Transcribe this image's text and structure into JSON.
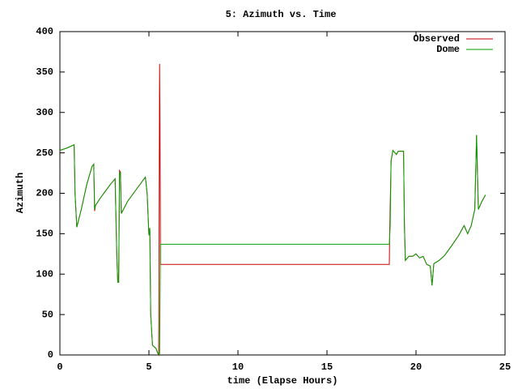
{
  "chart_data": {
    "type": "line",
    "title": "5: Azimuth vs. Time",
    "x_label": "time (Elapse Hours)",
    "y_label": "Azimuth",
    "xlim": [
      0,
      25
    ],
    "xticks": [
      0,
      5,
      10,
      15,
      20,
      25
    ],
    "ylim": [
      0,
      400
    ],
    "yticks": [
      0,
      50,
      100,
      150,
      200,
      250,
      300,
      350,
      400
    ],
    "grid": false,
    "legend": "top-right",
    "series": [
      {
        "name": "Observed",
        "color": "#cc0000",
        "x": [
          0,
          0.4,
          0.8,
          0.85,
          0.95,
          1.2,
          1.5,
          1.8,
          1.9,
          1.95,
          2.0,
          2.3,
          2.8,
          3.1,
          3.2,
          3.25,
          3.3,
          3.35,
          3.4,
          3.45,
          3.8,
          4.3,
          4.8,
          4.9,
          5.0,
          5.05,
          5.1,
          5.2,
          5.4,
          5.5,
          5.55,
          5.6,
          5.62,
          5.65,
          18.5,
          18.52,
          18.55,
          18.6,
          18.7,
          18.9,
          19.0,
          19.3,
          19.35,
          19.4,
          19.6,
          19.8,
          20.0,
          20.2,
          20.4,
          20.6,
          20.8,
          20.9,
          21.0,
          21.3,
          21.6,
          22.0,
          22.4,
          22.7,
          22.9,
          23.1,
          23.3,
          23.4,
          23.5,
          23.7,
          23.9
        ],
        "values": [
          253,
          256,
          260,
          200,
          158,
          180,
          210,
          233,
          236,
          178,
          185,
          195,
          210,
          218,
          120,
          90,
          90,
          228,
          226,
          175,
          190,
          205,
          220,
          200,
          148,
          157,
          50,
          12,
          8,
          2,
          0,
          360,
          298,
          112,
          112,
          150,
          185,
          240,
          253,
          248,
          252,
          252,
          160,
          117,
          122,
          122,
          125,
          120,
          122,
          112,
          110,
          86,
          113,
          117,
          123,
          135,
          148,
          160,
          150,
          160,
          180,
          272,
          180,
          190,
          198
        ]
      },
      {
        "name": "Dome",
        "color": "#00a000",
        "x": [
          0,
          0.4,
          0.8,
          0.85,
          0.95,
          1.2,
          1.5,
          1.8,
          1.9,
          1.95,
          2.0,
          2.3,
          2.8,
          3.1,
          3.2,
          3.25,
          3.3,
          3.35,
          3.4,
          3.45,
          3.8,
          4.3,
          4.8,
          4.9,
          5.0,
          5.05,
          5.1,
          5.2,
          5.4,
          5.5,
          5.6,
          5.65,
          18.5,
          18.55,
          18.6,
          18.7,
          18.9,
          19.0,
          19.3,
          19.35,
          19.4,
          19.6,
          19.8,
          20.0,
          20.2,
          20.4,
          20.6,
          20.8,
          20.9,
          21.0,
          21.3,
          21.6,
          22.0,
          22.4,
          22.7,
          22.9,
          23.1,
          23.3,
          23.4,
          23.5,
          23.7,
          23.9
        ],
        "values": [
          253,
          256,
          260,
          200,
          158,
          180,
          210,
          233,
          236,
          180,
          185,
          195,
          210,
          218,
          120,
          90,
          90,
          225,
          226,
          175,
          190,
          205,
          220,
          200,
          148,
          157,
          50,
          12,
          8,
          2,
          0,
          137,
          137,
          160,
          240,
          253,
          248,
          252,
          252,
          160,
          117,
          122,
          122,
          125,
          120,
          122,
          112,
          110,
          86,
          113,
          117,
          123,
          135,
          148,
          160,
          150,
          160,
          180,
          272,
          180,
          190,
          198
        ]
      }
    ]
  }
}
